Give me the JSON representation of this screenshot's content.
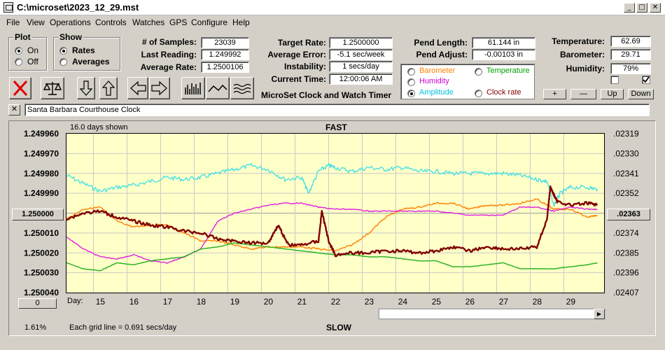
{
  "window": {
    "title": "C:\\microset\\2023_12_29.mst",
    "min": "_",
    "max": "□",
    "close": "✕"
  },
  "menu": [
    "File",
    "View",
    "Operations",
    "Controls",
    "Watches",
    "GPS",
    "Configure",
    "Help"
  ],
  "plot_group": {
    "title": "Plot",
    "options": [
      "On",
      "Off"
    ],
    "selected": "On"
  },
  "show_group": {
    "title": "Show",
    "options": [
      "Rates",
      "Averages"
    ],
    "selected": "Rates"
  },
  "stats": {
    "samples_label": "# of Samples:",
    "samples": "23039",
    "last_label": "Last Reading:",
    "last": "1.249992",
    "avg_label": "Average Rate:",
    "avg": "1.2500106"
  },
  "target": {
    "target_label": "Target Rate:",
    "target": "1.2500000",
    "error_label": "Average Error:",
    "error": "-5.1 sec/week",
    "instab_label": "Instability:",
    "instab": "1 secs/day",
    "time_label": "Current Time:",
    "time": "12:00:06 AM",
    "caption": "MicroSet Clock and Watch Timer"
  },
  "pend": {
    "length_label": "Pend Length:",
    "length": "61.144 in",
    "adjust_label": "Pend Adjust:",
    "adjust": "-0.00103 in"
  },
  "series_selector": {
    "items": [
      {
        "label": "Barometer",
        "color": "#ff8000"
      },
      {
        "label": "Temperature",
        "color": "#00a000"
      },
      {
        "label": "Humidity",
        "color": "#d000d0"
      },
      {
        "label": "Amplitude",
        "color": "#00c0e0"
      },
      {
        "label": "Clock rate",
        "color": "#800000"
      }
    ],
    "selected": "Amplitude"
  },
  "env": {
    "temp_label": "Temperature:",
    "temp": "62.69",
    "baro_label": "Barometer:",
    "baro": "29.71",
    "humid_label": "Humidity:",
    "humid": "79%"
  },
  "small_buttons": [
    "+",
    "—",
    "Up",
    "Down"
  ],
  "toolbar_icons": [
    "delete-icon",
    "balance-icon",
    "arrow-down-icon",
    "arrow-up-icon",
    "arrow-left-icon",
    "arrow-right-icon",
    "bar-chart-icon",
    "wave-icon",
    "wavy-lines-icon"
  ],
  "description": "Santa Barbara Courthouse Clock",
  "plot": {
    "days_shown": "16.0 days shown",
    "top_label": "FAST",
    "bottom_label": "SLOW",
    "grid_note": "Each grid line = 0.691 secs/day",
    "percent": "1.61%",
    "day_label": "Day:",
    "center_left": "1.250000",
    "center_right": ".02363",
    "scroll_left_value": "0"
  },
  "chart_data": {
    "type": "line",
    "y_left_ticks": [
      "1.249960",
      "1.249970",
      "1.249980",
      "1.249990",
      "1.250000",
      "1.250010",
      "1.250020",
      "1.250030",
      "1.250040"
    ],
    "y_right_ticks": [
      ".02319",
      ".02330",
      ".02341",
      ".02352",
      ".02363",
      ".02374",
      ".02385",
      ".02396",
      ".02407"
    ],
    "x_ticks": [
      "15",
      "16",
      "17",
      "18",
      "19",
      "20",
      "21",
      "22",
      "23",
      "24",
      "25",
      "26",
      "27",
      "28",
      "29"
    ],
    "xlim": [
      14.0,
      30.0
    ],
    "ylim_rate": [
      1.24996,
      1.25004
    ],
    "series": [
      {
        "name": "Amplitude",
        "color": "#40e0e8",
        "x": [
          14.0,
          14.5,
          15.0,
          15.5,
          16.0,
          16.5,
          17.0,
          17.5,
          18.0,
          18.5,
          19.0,
          19.5,
          20.0,
          20.5,
          21.0,
          21.2,
          21.5,
          21.8,
          22.0,
          22.5,
          23.0,
          23.5,
          24.0,
          24.5,
          25.0,
          25.5,
          26.0,
          26.5,
          27.0,
          27.5,
          28.0,
          28.3,
          28.5,
          28.7,
          29.0,
          29.5,
          29.8
        ],
        "y": [
          1.249981,
          1.249985,
          1.249989,
          1.249987,
          1.249986,
          1.249984,
          1.249982,
          1.249983,
          1.249982,
          1.24998,
          1.249978,
          1.249976,
          1.249978,
          1.249983,
          1.249982,
          1.24999,
          1.249979,
          1.249976,
          1.249977,
          1.249979,
          1.249977,
          1.249978,
          1.249977,
          1.249979,
          1.249979,
          1.24998,
          1.24998,
          1.24998,
          1.24998,
          1.249981,
          1.249983,
          1.249984,
          1.249996,
          1.24999,
          1.249987,
          1.249987,
          1.249988
        ]
      },
      {
        "name": "Barometer",
        "color": "#ff8000",
        "x": [
          14.0,
          14.5,
          15.0,
          15.5,
          16.0,
          16.5,
          17.0,
          17.5,
          18.0,
          18.5,
          19.0,
          19.5,
          20.0,
          20.5,
          21.0,
          21.5,
          22.0,
          22.5,
          23.0,
          23.5,
          24.0,
          24.5,
          25.0,
          25.5,
          26.0,
          26.5,
          27.0,
          27.5,
          28.0,
          28.5,
          29.0,
          29.5,
          29.8
        ],
        "y": [
          1.250003,
          1.249998,
          1.249997,
          1.250004,
          1.250007,
          1.250006,
          1.250006,
          1.25001,
          1.250014,
          1.250014,
          1.250016,
          1.250018,
          1.250017,
          1.250017,
          1.250017,
          1.250018,
          1.250019,
          1.250016,
          1.25001,
          1.250002,
          1.249998,
          1.249997,
          1.249995,
          1.249995,
          1.249998,
          1.249996,
          1.249996,
          1.249995,
          1.249993,
          1.249998,
          1.249998,
          1.250002,
          1.250001
        ]
      },
      {
        "name": "Humidity",
        "color": "#e020e0",
        "x": [
          14.0,
          14.5,
          15.0,
          15.5,
          16.0,
          16.5,
          17.0,
          17.5,
          18.0,
          18.5,
          19.0,
          19.5,
          20.0,
          20.5,
          21.0,
          21.5,
          22.0,
          22.5,
          23.0,
          23.5,
          24.0,
          24.5,
          25.0,
          25.5,
          26.0,
          26.5,
          27.0,
          27.5,
          28.0,
          28.5,
          29.0,
          29.5,
          29.8
        ],
        "y": [
          1.250012,
          1.250018,
          1.250022,
          1.250023,
          1.250021,
          1.250024,
          1.250025,
          1.250022,
          1.250018,
          1.250004,
          1.25,
          1.249998,
          1.249996,
          1.249995,
          1.249995,
          1.249997,
          1.249998,
          1.249998,
          1.249999,
          1.249999,
          1.249999,
          1.249999,
          1.249999,
          1.25,
          1.250001,
          1.250001,
          1.250001,
          1.249997,
          1.249997,
          1.249999,
          1.249997,
          1.249998,
          1.249998
        ]
      },
      {
        "name": "Temperature",
        "color": "#20b020",
        "x": [
          14.0,
          14.5,
          15.0,
          15.5,
          16.0,
          16.5,
          17.0,
          17.5,
          18.0,
          18.5,
          19.0,
          19.5,
          20.0,
          20.5,
          21.0,
          21.5,
          22.0,
          22.5,
          23.0,
          23.5,
          24.0,
          24.5,
          25.0,
          25.5,
          26.0,
          26.5,
          27.0,
          27.5,
          28.0,
          28.5,
          29.0,
          29.5,
          29.8
        ],
        "y": [
          1.250025,
          1.250028,
          1.250029,
          1.250025,
          1.250026,
          1.250024,
          1.250023,
          1.250022,
          1.250018,
          1.250017,
          1.250015,
          1.250016,
          1.250017,
          1.250018,
          1.250019,
          1.25002,
          1.250021,
          1.250021,
          1.250022,
          1.250022,
          1.250023,
          1.250024,
          1.250024,
          1.250027,
          1.250027,
          1.250026,
          1.250025,
          1.250028,
          1.250028,
          1.250028,
          1.250027,
          1.250026,
          1.250025
        ]
      },
      {
        "name": "Clock rate",
        "color": "#800000",
        "x": [
          14.0,
          14.5,
          15.0,
          15.5,
          16.0,
          16.5,
          17.0,
          17.5,
          18.0,
          18.5,
          19.0,
          19.5,
          20.0,
          20.3,
          20.6,
          21.0,
          21.5,
          21.6,
          21.8,
          22.0,
          22.5,
          23.0,
          23.5,
          24.0,
          24.5,
          25.0,
          25.5,
          26.0,
          26.5,
          27.0,
          27.5,
          28.0,
          28.3,
          28.4,
          28.6,
          29.0,
          29.5,
          29.8
        ],
        "y": [
          1.250003,
          1.25,
          1.249999,
          1.250002,
          1.250004,
          1.250006,
          1.250007,
          1.250009,
          1.25001,
          1.250013,
          1.250014,
          1.250015,
          1.250015,
          1.250006,
          1.250016,
          1.250016,
          1.250014,
          1.249999,
          1.250014,
          1.250021,
          1.25002,
          1.25002,
          1.250019,
          1.250019,
          1.25002,
          1.250019,
          1.250017,
          1.250019,
          1.250017,
          1.250018,
          1.250018,
          1.250017,
          1.250003,
          1.249987,
          1.249994,
          1.249996,
          1.249995,
          1.249996
        ]
      }
    ]
  }
}
